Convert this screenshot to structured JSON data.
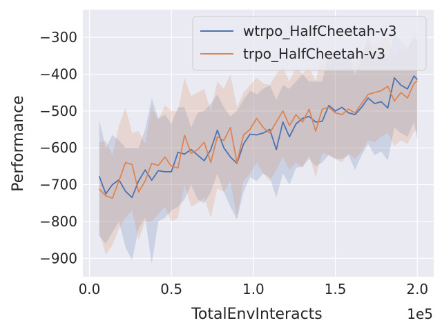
{
  "chart_data": {
    "type": "line",
    "title": "",
    "xlabel": "TotalEnvInteracts",
    "ylabel": "Performance",
    "x_offset_label": "1e5",
    "xlim": [
      -0.04,
      2.1
    ],
    "ylim": [
      -950,
      -225
    ],
    "x_ticks": [
      0.0,
      0.5,
      1.0,
      1.5,
      2.0
    ],
    "x_tick_labels": [
      "0.0",
      "0.5",
      "1.0",
      "1.5",
      "2.0"
    ],
    "y_ticks": [
      -900,
      -800,
      -700,
      -600,
      -500,
      -400,
      -300
    ],
    "y_tick_labels": [
      "−900",
      "−800",
      "−700",
      "−600",
      "−500",
      "−400",
      "−300"
    ],
    "grid": true,
    "legend_position": "top-right",
    "x": [
      0.06,
      0.1,
      0.14,
      0.18,
      0.22,
      0.26,
      0.3,
      0.34,
      0.38,
      0.42,
      0.46,
      0.5,
      0.54,
      0.58,
      0.62,
      0.66,
      0.7,
      0.74,
      0.78,
      0.82,
      0.86,
      0.9,
      0.94,
      0.98,
      1.02,
      1.06,
      1.1,
      1.14,
      1.18,
      1.22,
      1.26,
      1.3,
      1.34,
      1.38,
      1.42,
      1.46,
      1.5,
      1.54,
      1.58,
      1.62,
      1.66,
      1.7,
      1.74,
      1.78,
      1.82,
      1.86,
      1.9,
      1.94,
      1.98,
      2.0
    ],
    "series": [
      {
        "name": "wtrpo_HalfCheetah-v3",
        "color": "#4c72b0",
        "values": [
          -677,
          -725,
          -700,
          -687,
          -718,
          -735,
          -690,
          -660,
          -688,
          -662,
          -665,
          -665,
          -612,
          -617,
          -605,
          -620,
          -635,
          -605,
          -552,
          -600,
          -625,
          -642,
          -590,
          -563,
          -565,
          -560,
          -550,
          -605,
          -530,
          -570,
          -535,
          -520,
          -515,
          -530,
          -528,
          -485,
          -500,
          -490,
          -505,
          -510,
          -490,
          -465,
          -480,
          -475,
          -492,
          -410,
          -430,
          -440,
          -405,
          -415
        ],
        "upper": [
          -525,
          -600,
          -565,
          -580,
          -600,
          -600,
          -600,
          -550,
          -465,
          -520,
          -510,
          -535,
          -490,
          -490,
          -545,
          -505,
          -500,
          -480,
          -455,
          -490,
          -515,
          -500,
          -470,
          -445,
          -455,
          -440,
          -430,
          -470,
          -430,
          -440,
          -420,
          -400,
          -420,
          -420,
          -420,
          -340,
          -350,
          -360,
          -355,
          -400,
          -360,
          -300,
          -360,
          -340,
          -360,
          -290,
          -310,
          -330,
          -300,
          -310
        ],
        "lower": [
          -840,
          -860,
          -830,
          -800,
          -870,
          -905,
          -820,
          -790,
          -915,
          -800,
          -790,
          -770,
          -760,
          -740,
          -700,
          -740,
          -750,
          -720,
          -670,
          -720,
          -760,
          -795,
          -720,
          -680,
          -690,
          -670,
          -680,
          -735,
          -670,
          -700,
          -655,
          -650,
          -630,
          -650,
          -640,
          -620,
          -630,
          -630,
          -620,
          -660,
          -620,
          -590,
          -620,
          -610,
          -635,
          -545,
          -560,
          -570,
          -530,
          -580
        ]
      },
      {
        "name": "trpo_HalfCheetah-v3",
        "color": "#dd8452",
        "values": [
          -712,
          -730,
          -737,
          -690,
          -640,
          -645,
          -720,
          -690,
          -642,
          -648,
          -625,
          -650,
          -655,
          -566,
          -615,
          -605,
          -585,
          -640,
          -570,
          -580,
          -545,
          -640,
          -565,
          -550,
          -520,
          -545,
          -560,
          -530,
          -500,
          -540,
          -510,
          -530,
          -495,
          -555,
          -495,
          -490,
          -505,
          -510,
          -495,
          -505,
          -480,
          -455,
          -450,
          -445,
          -433,
          -473,
          -450,
          -465,
          -425,
          -418
        ],
        "upper": [
          -585,
          -580,
          -620,
          -540,
          -490,
          -560,
          -555,
          -590,
          -490,
          -525,
          -485,
          -500,
          -500,
          -410,
          -460,
          -450,
          -440,
          -500,
          -420,
          -440,
          -400,
          -490,
          -450,
          -430,
          -410,
          -425,
          -430,
          -400,
          -380,
          -420,
          -380,
          -400,
          -380,
          -420,
          -340,
          -350,
          -360,
          -370,
          -345,
          -370,
          -340,
          -310,
          -320,
          -305,
          -300,
          -360,
          -330,
          -335,
          -290,
          -290
        ],
        "lower": [
          -830,
          -890,
          -865,
          -820,
          -790,
          -770,
          -850,
          -800,
          -800,
          -780,
          -760,
          -800,
          -790,
          -700,
          -760,
          -750,
          -735,
          -790,
          -710,
          -720,
          -690,
          -790,
          -690,
          -670,
          -640,
          -670,
          -690,
          -660,
          -625,
          -660,
          -640,
          -655,
          -620,
          -680,
          -615,
          -620,
          -630,
          -640,
          -615,
          -630,
          -610,
          -580,
          -585,
          -570,
          -560,
          -595,
          -580,
          -590,
          -555,
          -555
        ]
      }
    ]
  }
}
